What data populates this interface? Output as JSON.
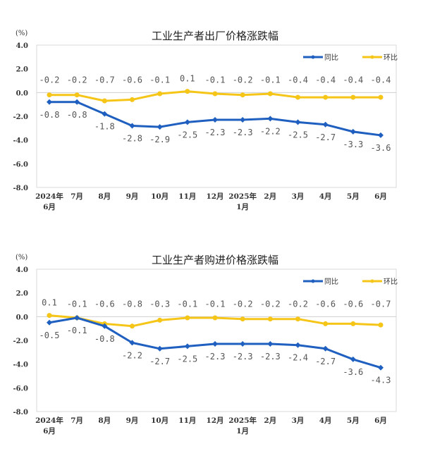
{
  "chart_data": [
    {
      "type": "line",
      "title": "工业生产者出厂价格涨跌幅",
      "ylabel": "(%)",
      "ylim": [
        -8.0,
        4.0
      ],
      "yticks": [
        "4.0",
        "2.0",
        "0.0",
        "-2.0",
        "-4.0",
        "-6.0",
        "-8.0"
      ],
      "categories": [
        [
          "2024年",
          "6月"
        ],
        [
          "7月"
        ],
        [
          "8月"
        ],
        [
          "9月"
        ],
        [
          "10月"
        ],
        [
          "11月"
        ],
        [
          "12月"
        ],
        [
          "2025年",
          "1月"
        ],
        [
          "2月"
        ],
        [
          "3月"
        ],
        [
          "4月"
        ],
        [
          "5月"
        ],
        [
          "6月"
        ]
      ],
      "legend_position": "top-right",
      "series": [
        {
          "name": "同比",
          "color": "#1f5fbf",
          "values": [
            -0.8,
            -0.8,
            -1.8,
            -2.8,
            -2.9,
            -2.5,
            -2.3,
            -2.3,
            -2.2,
            -2.5,
            -2.7,
            -3.3,
            -3.6
          ]
        },
        {
          "name": "环比",
          "color": "#f5c518",
          "values": [
            -0.2,
            -0.2,
            -0.7,
            -0.6,
            -0.1,
            0.1,
            -0.1,
            -0.2,
            -0.1,
            -0.4,
            -0.4,
            -0.4,
            -0.4
          ]
        }
      ]
    },
    {
      "type": "line",
      "title": "工业生产者购进价格涨跌幅",
      "ylabel": "(%)",
      "ylim": [
        -8.0,
        4.0
      ],
      "yticks": [
        "4.0",
        "2.0",
        "0.0",
        "-2.0",
        "-4.0",
        "-6.0",
        "-8.0"
      ],
      "categories": [
        [
          "2024年",
          "6月"
        ],
        [
          "7月"
        ],
        [
          "8月"
        ],
        [
          "9月"
        ],
        [
          "10月"
        ],
        [
          "11月"
        ],
        [
          "12月"
        ],
        [
          "2025年",
          "1月"
        ],
        [
          "2月"
        ],
        [
          "3月"
        ],
        [
          "4月"
        ],
        [
          "5月"
        ],
        [
          "6月"
        ]
      ],
      "legend_position": "top-right",
      "series": [
        {
          "name": "同比",
          "color": "#1f5fbf",
          "values": [
            -0.5,
            -0.1,
            -0.8,
            -2.2,
            -2.7,
            -2.5,
            -2.3,
            -2.3,
            -2.3,
            -2.4,
            -2.7,
            -3.6,
            -4.3
          ]
        },
        {
          "name": "环比",
          "color": "#f5c518",
          "values": [
            0.1,
            -0.1,
            -0.6,
            -0.8,
            -0.3,
            -0.1,
            -0.1,
            -0.2,
            -0.2,
            -0.2,
            -0.6,
            -0.6,
            -0.7
          ]
        }
      ]
    }
  ]
}
